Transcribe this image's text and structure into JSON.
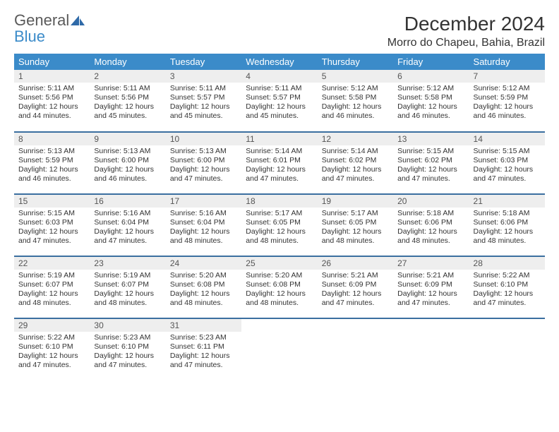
{
  "brand": {
    "general": "General",
    "blue": "Blue"
  },
  "title": "December 2024",
  "location": "Morro do Chapeu, Bahia, Brazil",
  "colors": {
    "header_bg": "#3b8bc9",
    "header_text": "#ffffff",
    "row_divider": "#3b6fa0",
    "daynum_bg": "#eeeeee",
    "logo_gray": "#5a5a5a",
    "logo_blue": "#3b8bc9"
  },
  "weekdays": [
    "Sunday",
    "Monday",
    "Tuesday",
    "Wednesday",
    "Thursday",
    "Friday",
    "Saturday"
  ],
  "weeks": [
    [
      {
        "n": 1,
        "sr": "5:11 AM",
        "ss": "5:56 PM",
        "dl": "12 hours and 44 minutes."
      },
      {
        "n": 2,
        "sr": "5:11 AM",
        "ss": "5:56 PM",
        "dl": "12 hours and 45 minutes."
      },
      {
        "n": 3,
        "sr": "5:11 AM",
        "ss": "5:57 PM",
        "dl": "12 hours and 45 minutes."
      },
      {
        "n": 4,
        "sr": "5:11 AM",
        "ss": "5:57 PM",
        "dl": "12 hours and 45 minutes."
      },
      {
        "n": 5,
        "sr": "5:12 AM",
        "ss": "5:58 PM",
        "dl": "12 hours and 46 minutes."
      },
      {
        "n": 6,
        "sr": "5:12 AM",
        "ss": "5:58 PM",
        "dl": "12 hours and 46 minutes."
      },
      {
        "n": 7,
        "sr": "5:12 AM",
        "ss": "5:59 PM",
        "dl": "12 hours and 46 minutes."
      }
    ],
    [
      {
        "n": 8,
        "sr": "5:13 AM",
        "ss": "5:59 PM",
        "dl": "12 hours and 46 minutes."
      },
      {
        "n": 9,
        "sr": "5:13 AM",
        "ss": "6:00 PM",
        "dl": "12 hours and 46 minutes."
      },
      {
        "n": 10,
        "sr": "5:13 AM",
        "ss": "6:00 PM",
        "dl": "12 hours and 47 minutes."
      },
      {
        "n": 11,
        "sr": "5:14 AM",
        "ss": "6:01 PM",
        "dl": "12 hours and 47 minutes."
      },
      {
        "n": 12,
        "sr": "5:14 AM",
        "ss": "6:02 PM",
        "dl": "12 hours and 47 minutes."
      },
      {
        "n": 13,
        "sr": "5:15 AM",
        "ss": "6:02 PM",
        "dl": "12 hours and 47 minutes."
      },
      {
        "n": 14,
        "sr": "5:15 AM",
        "ss": "6:03 PM",
        "dl": "12 hours and 47 minutes."
      }
    ],
    [
      {
        "n": 15,
        "sr": "5:15 AM",
        "ss": "6:03 PM",
        "dl": "12 hours and 47 minutes."
      },
      {
        "n": 16,
        "sr": "5:16 AM",
        "ss": "6:04 PM",
        "dl": "12 hours and 47 minutes."
      },
      {
        "n": 17,
        "sr": "5:16 AM",
        "ss": "6:04 PM",
        "dl": "12 hours and 48 minutes."
      },
      {
        "n": 18,
        "sr": "5:17 AM",
        "ss": "6:05 PM",
        "dl": "12 hours and 48 minutes."
      },
      {
        "n": 19,
        "sr": "5:17 AM",
        "ss": "6:05 PM",
        "dl": "12 hours and 48 minutes."
      },
      {
        "n": 20,
        "sr": "5:18 AM",
        "ss": "6:06 PM",
        "dl": "12 hours and 48 minutes."
      },
      {
        "n": 21,
        "sr": "5:18 AM",
        "ss": "6:06 PM",
        "dl": "12 hours and 48 minutes."
      }
    ],
    [
      {
        "n": 22,
        "sr": "5:19 AM",
        "ss": "6:07 PM",
        "dl": "12 hours and 48 minutes."
      },
      {
        "n": 23,
        "sr": "5:19 AM",
        "ss": "6:07 PM",
        "dl": "12 hours and 48 minutes."
      },
      {
        "n": 24,
        "sr": "5:20 AM",
        "ss": "6:08 PM",
        "dl": "12 hours and 48 minutes."
      },
      {
        "n": 25,
        "sr": "5:20 AM",
        "ss": "6:08 PM",
        "dl": "12 hours and 48 minutes."
      },
      {
        "n": 26,
        "sr": "5:21 AM",
        "ss": "6:09 PM",
        "dl": "12 hours and 47 minutes."
      },
      {
        "n": 27,
        "sr": "5:21 AM",
        "ss": "6:09 PM",
        "dl": "12 hours and 47 minutes."
      },
      {
        "n": 28,
        "sr": "5:22 AM",
        "ss": "6:10 PM",
        "dl": "12 hours and 47 minutes."
      }
    ],
    [
      {
        "n": 29,
        "sr": "5:22 AM",
        "ss": "6:10 PM",
        "dl": "12 hours and 47 minutes."
      },
      {
        "n": 30,
        "sr": "5:23 AM",
        "ss": "6:10 PM",
        "dl": "12 hours and 47 minutes."
      },
      {
        "n": 31,
        "sr": "5:23 AM",
        "ss": "6:11 PM",
        "dl": "12 hours and 47 minutes."
      },
      null,
      null,
      null,
      null
    ]
  ],
  "labels": {
    "sunrise": "Sunrise:",
    "sunset": "Sunset:",
    "daylight": "Daylight:"
  }
}
